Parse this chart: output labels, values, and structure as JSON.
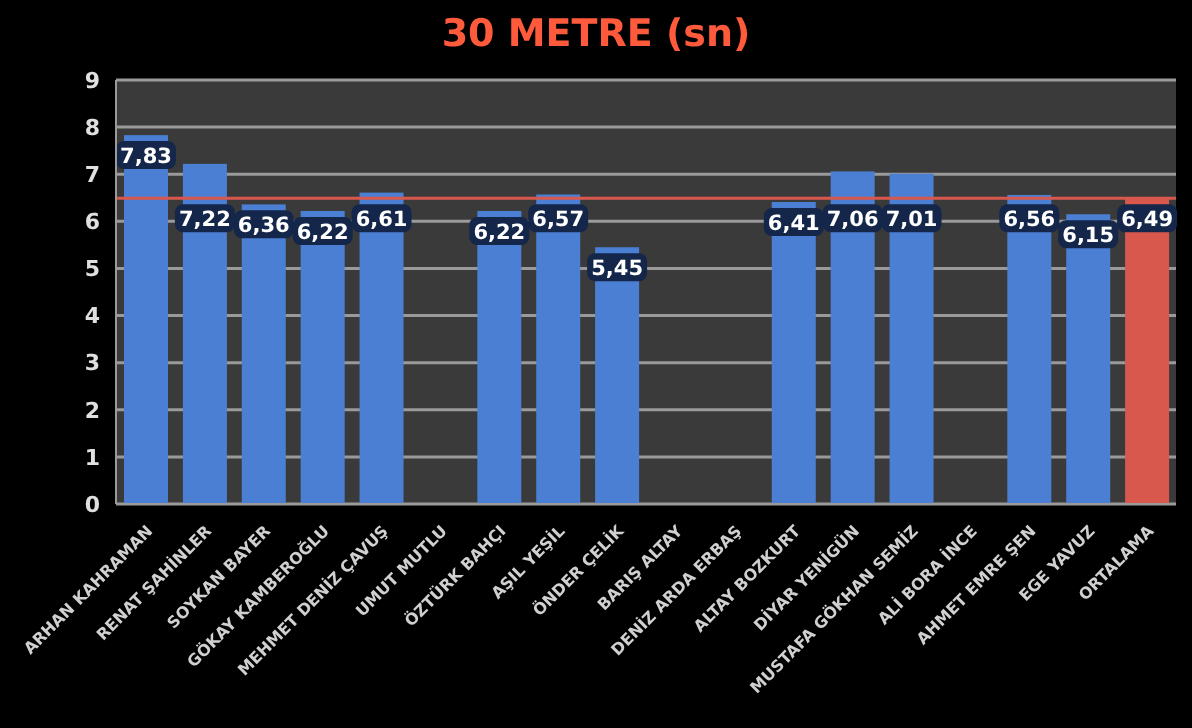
{
  "chart_data": {
    "type": "bar",
    "title": "30 METRE (sn)",
    "categories": [
      "ARHAN KAHRAMAN",
      "RENAT ŞAHİNLER",
      "SOYKAN BAYER",
      "GÖKAY KAMBEROĞLU",
      "MEHMET DENİZ ÇAVUŞ",
      "UMUT MUTLU",
      "ÖZTÜRK BAHÇI",
      "AŞIL YEŞİL",
      "ÖNDER ÇELİK",
      "BARIŞ ALTAY",
      "DENİZ ARDA ERBAŞ",
      "ALTAY BOZKURT",
      "DİYAR YENİGÜN",
      "MUSTAFA GÖKHAN SEMİZ",
      "ALİ BORA İNCE",
      "AHMET EMRE ŞEN",
      "EGE YAVUZ",
      "ORTALAMA"
    ],
    "values": [
      7.83,
      7.22,
      6.36,
      6.22,
      6.61,
      null,
      6.22,
      6.57,
      5.45,
      null,
      null,
      6.41,
      7.06,
      7.01,
      null,
      6.56,
      6.15,
      6.49
    ],
    "value_labels": [
      "7,83",
      "7,22",
      "6,36",
      "6,22",
      "6,61",
      null,
      "6,22",
      "6,57",
      "5,45",
      null,
      null,
      "6,41",
      "7,06",
      "7,01",
      null,
      "6,56",
      "6,15",
      "6,49"
    ],
    "colors": [
      "#4a7fd4",
      "#4a7fd4",
      "#4a7fd4",
      "#4a7fd4",
      "#4a7fd4",
      "#4a7fd4",
      "#4a7fd4",
      "#4a7fd4",
      "#4a7fd4",
      "#4a7fd4",
      "#4a7fd4",
      "#4a7fd4",
      "#4a7fd4",
      "#4a7fd4",
      "#4a7fd4",
      "#4a7fd4",
      "#4a7fd4",
      "#d9584e"
    ],
    "ylim": [
      0,
      9
    ],
    "yticks": [
      0,
      1,
      2,
      3,
      4,
      5,
      6,
      7,
      8,
      9
    ],
    "grid": "y",
    "ref_lines": [
      {
        "axis": "y",
        "value": 6.49,
        "color": "#d9584e"
      }
    ]
  }
}
